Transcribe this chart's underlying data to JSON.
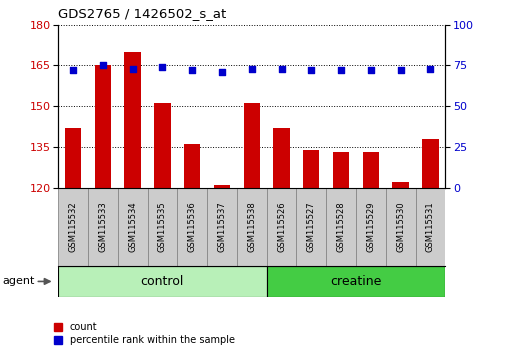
{
  "title": "GDS2765 / 1426502_s_at",
  "categories": [
    "GSM115532",
    "GSM115533",
    "GSM115534",
    "GSM115535",
    "GSM115536",
    "GSM115537",
    "GSM115538",
    "GSM115526",
    "GSM115527",
    "GSM115528",
    "GSM115529",
    "GSM115530",
    "GSM115531"
  ],
  "count_values": [
    142,
    165,
    170,
    151,
    136,
    121,
    151,
    142,
    134,
    133,
    133,
    122,
    138
  ],
  "percentile_values": [
    72,
    75,
    73,
    74,
    72,
    71,
    73,
    73,
    72,
    72,
    72,
    72,
    73
  ],
  "groups": [
    {
      "label": "control",
      "color": "#b8f0b8",
      "start": 0,
      "end": 7
    },
    {
      "label": "creatine",
      "color": "#44cc44",
      "start": 7,
      "end": 13
    }
  ],
  "agent_label": "agent",
  "bar_color": "#cc0000",
  "dot_color": "#0000cc",
  "ylim_left": [
    120,
    180
  ],
  "ylim_right": [
    0,
    100
  ],
  "yticks_left": [
    120,
    135,
    150,
    165,
    180
  ],
  "yticks_right": [
    0,
    25,
    50,
    75,
    100
  ],
  "legend_count_label": "count",
  "legend_percentile_label": "percentile rank within the sample"
}
